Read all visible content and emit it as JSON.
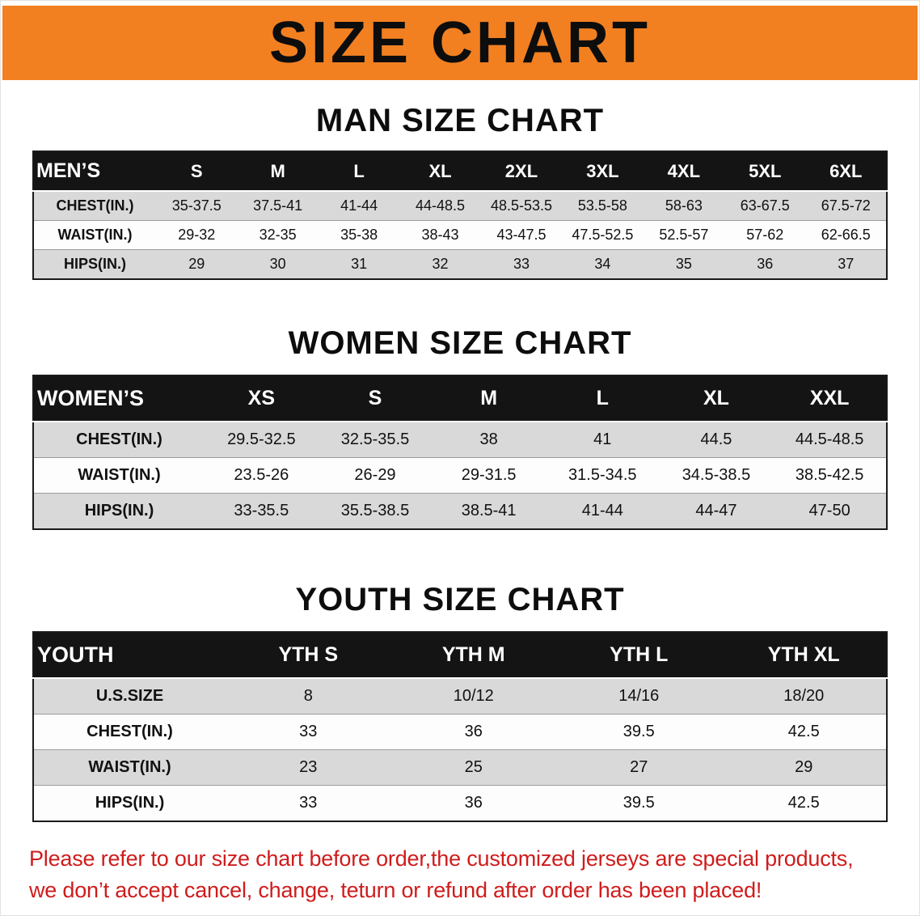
{
  "banner": {
    "title": "SIZE CHART"
  },
  "colors": {
    "banner_bg": "#f28021",
    "header_black": "#141414",
    "row_gray": "#d9d9d9",
    "warning_red": "#cf1c1c"
  },
  "sections": [
    {
      "heading": "MAN SIZE CHART",
      "table": {
        "header": [
          "MEN’S",
          "S",
          "M",
          "L",
          "XL",
          "2XL",
          "3XL",
          "4XL",
          "5XL",
          "6XL"
        ],
        "rows": [
          [
            "CHEST(IN.)",
            "35-37.5",
            "37.5-41",
            "41-44",
            "44-48.5",
            "48.5-53.5",
            "53.5-58",
            "58-63",
            "63-67.5",
            "67.5-72"
          ],
          [
            "WAIST(IN.)",
            "29-32",
            "32-35",
            "35-38",
            "38-43",
            "43-47.5",
            "47.5-52.5",
            "52.5-57",
            "57-62",
            "62-66.5"
          ],
          [
            "HIPS(IN.)",
            "29",
            "30",
            "31",
            "32",
            "33",
            "34",
            "35",
            "36",
            "37"
          ]
        ]
      }
    },
    {
      "heading": "WOMEN SIZE CHART",
      "table": {
        "header": [
          "WOMEN’S",
          "XS",
          "S",
          "M",
          "L",
          "XL",
          "XXL"
        ],
        "rows": [
          [
            "CHEST(IN.)",
            "29.5-32.5",
            "32.5-35.5",
            "38",
            "41",
            "44.5",
            "44.5-48.5"
          ],
          [
            "WAIST(IN.)",
            "23.5-26",
            "26-29",
            "29-31.5",
            "31.5-34.5",
            "34.5-38.5",
            "38.5-42.5"
          ],
          [
            "HIPS(IN.)",
            "33-35.5",
            "35.5-38.5",
            "38.5-41",
            "41-44",
            "44-47",
            "47-50"
          ]
        ]
      }
    },
    {
      "heading": "YOUTH SIZE CHART",
      "table": {
        "header": [
          "YOUTH",
          "YTH S",
          "YTH M",
          "YTH L",
          "YTH XL"
        ],
        "rows": [
          [
            "U.S.SIZE",
            "8",
            "10/12",
            "14/16",
            "18/20"
          ],
          [
            "CHEST(IN.)",
            "33",
            "36",
            "39.5",
            "42.5"
          ],
          [
            "WAIST(IN.)",
            "23",
            "25",
            "27",
            "29"
          ],
          [
            "HIPS(IN.)",
            "33",
            "36",
            "39.5",
            "42.5"
          ]
        ]
      }
    }
  ],
  "disclaimer": {
    "line1": "Please refer to our size chart before order,the customized jerseys are special products,",
    "line2": "we don’t accept cancel, change, teturn or refund after order has been placed!"
  }
}
